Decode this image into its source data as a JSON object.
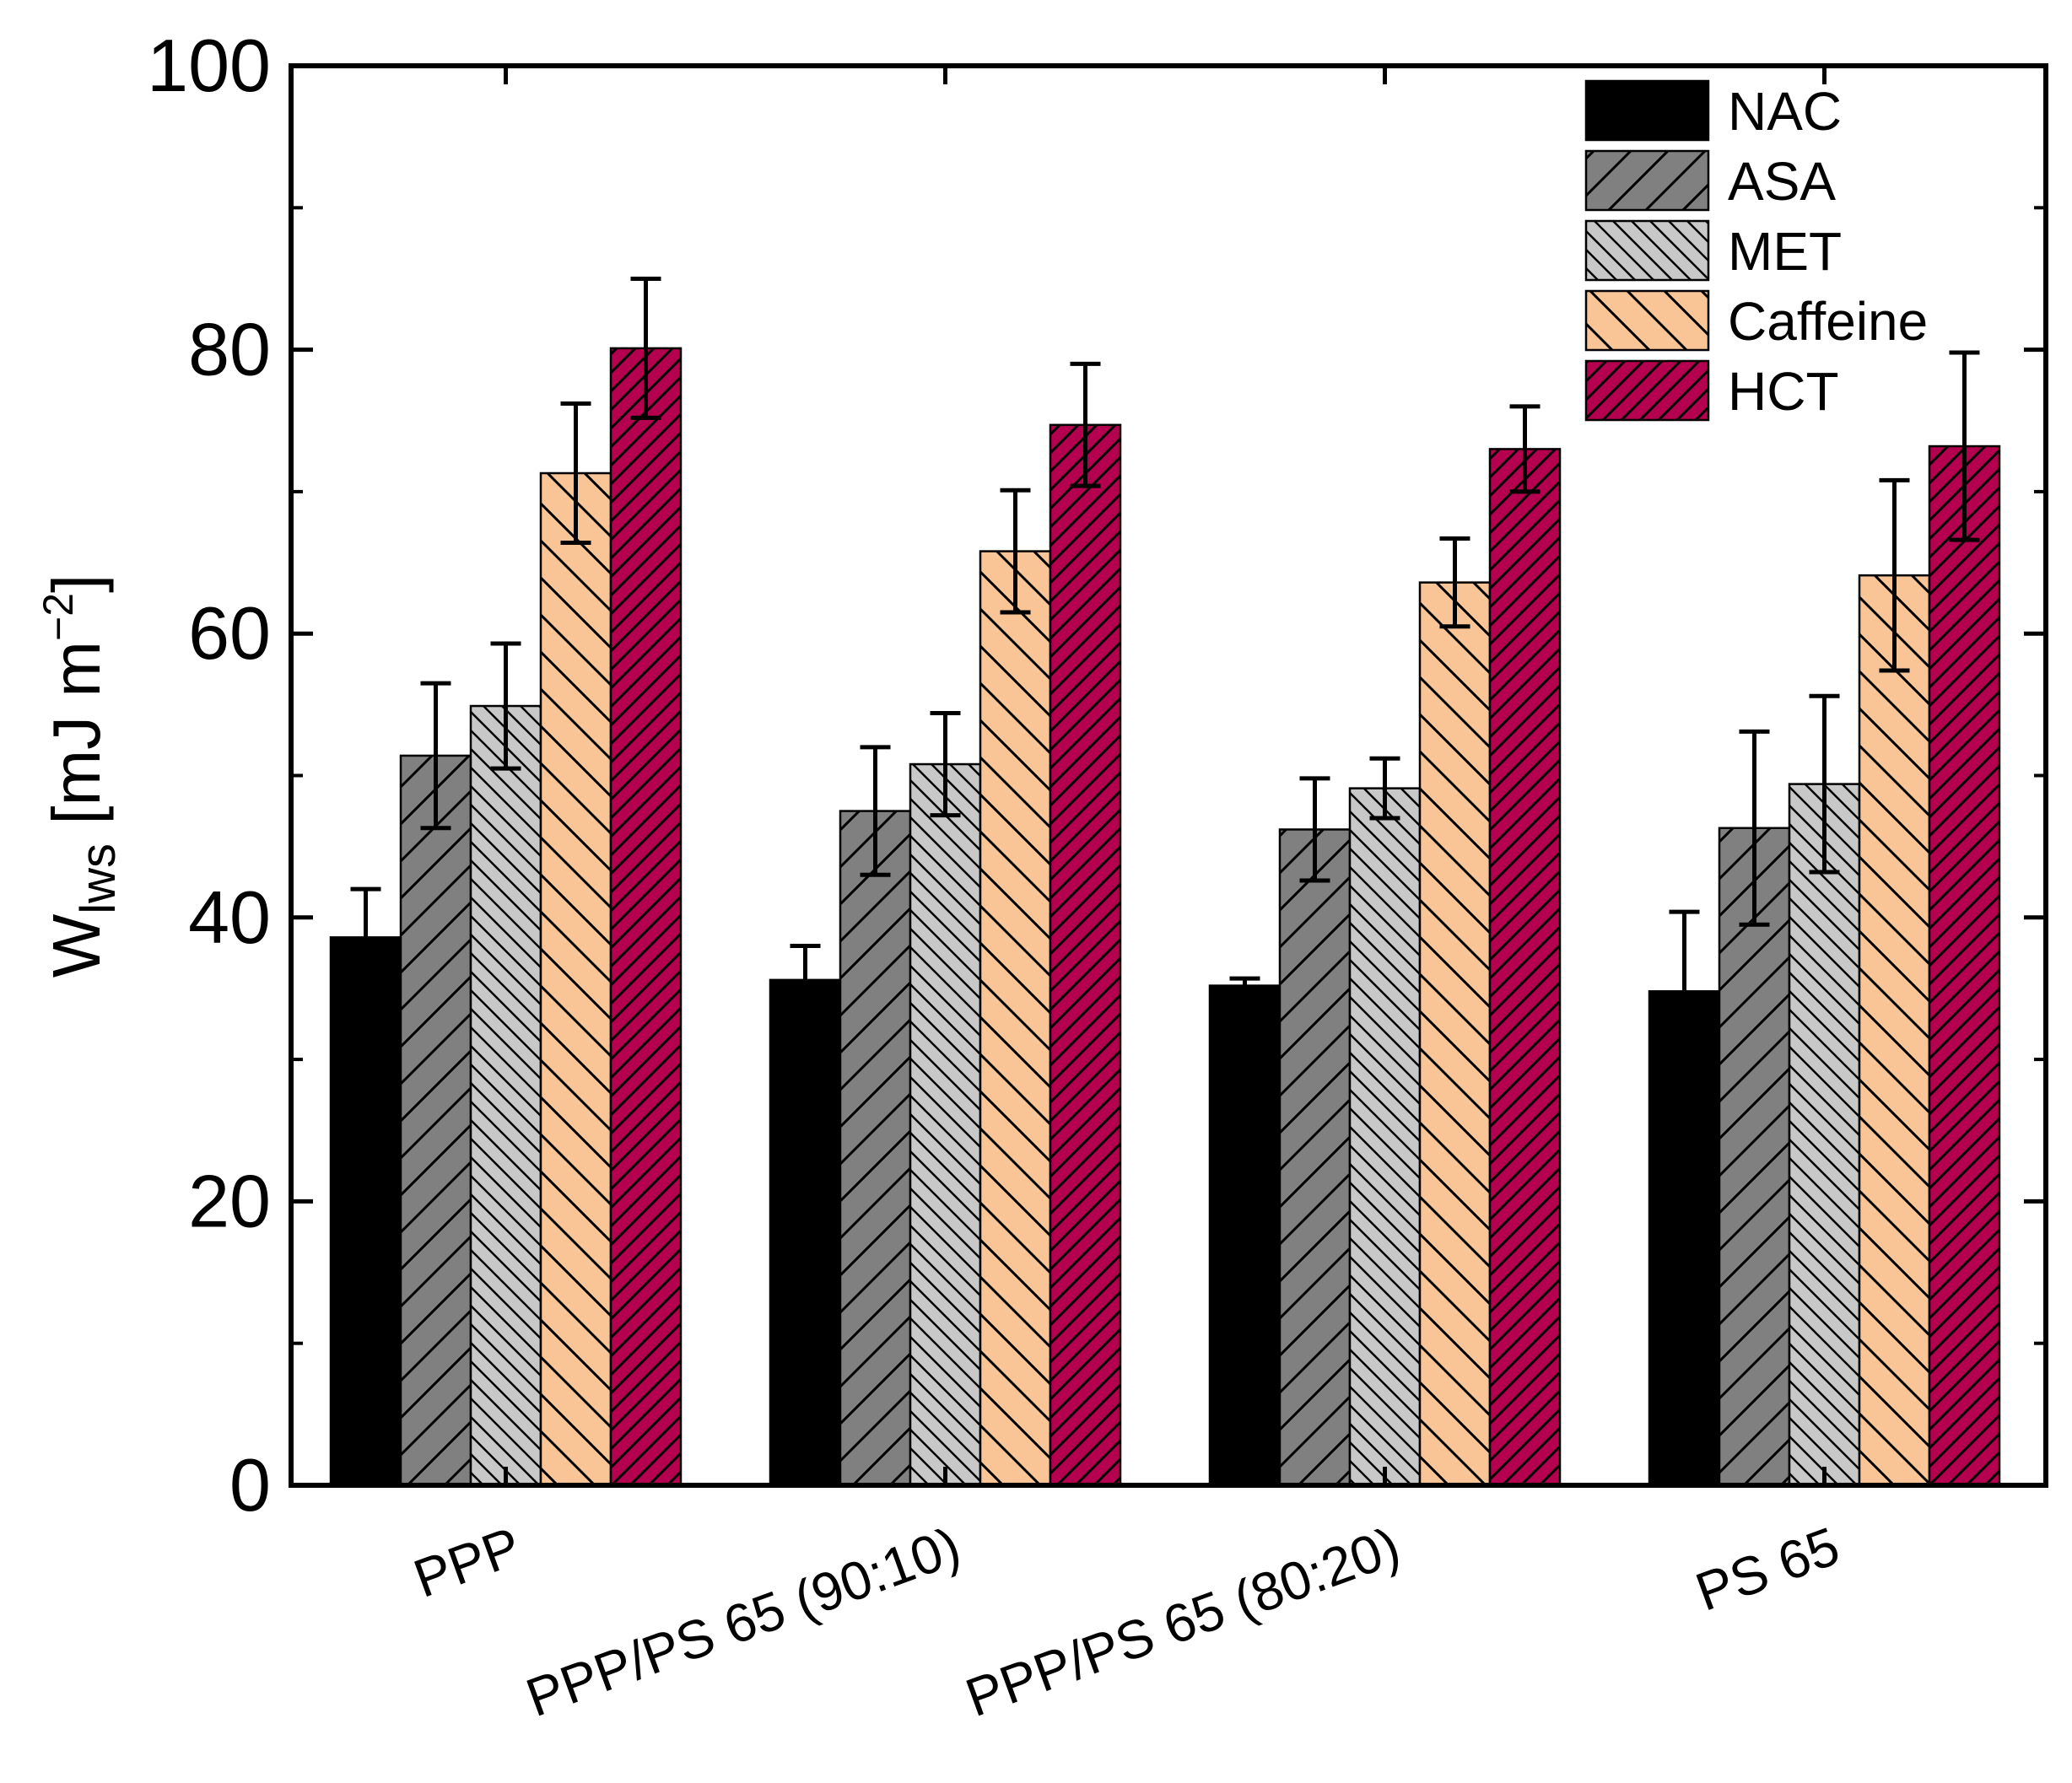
{
  "chart_data": {
    "type": "bar",
    "categories": [
      "PPP",
      "PPP/PS 65 (90:10)",
      "PPP/PS 65 (80:20)",
      "PS 65"
    ],
    "series": [
      {
        "name": "NAC",
        "values": [
          38.6,
          35.6,
          35.2,
          34.8
        ],
        "errors": [
          3.4,
          2.4,
          0.5,
          5.6
        ],
        "color": "#000000",
        "pattern": "none"
      },
      {
        "name": "ASA",
        "values": [
          51.4,
          47.5,
          46.2,
          46.3
        ],
        "errors": [
          5.1,
          4.5,
          3.6,
          6.8
        ],
        "color": "#808080",
        "pattern": "diag-up-wide"
      },
      {
        "name": "MET",
        "values": [
          54.9,
          50.8,
          49.1,
          49.4
        ],
        "errors": [
          4.4,
          3.6,
          2.1,
          6.2
        ],
        "color": "#c8c8c8",
        "pattern": "diag-down-narrow"
      },
      {
        "name": "Caffeine",
        "values": [
          71.3,
          65.8,
          63.6,
          64.1
        ],
        "errors": [
          4.9,
          4.3,
          3.1,
          6.7
        ],
        "color": "#f9c596",
        "pattern": "diag-down-wide"
      },
      {
        "name": "HCT",
        "values": [
          80.1,
          74.7,
          73.0,
          73.2
        ],
        "errors": [
          4.9,
          4.3,
          3.0,
          6.6
        ],
        "color": "#b4004e",
        "pattern": "diag-up-narrow"
      }
    ],
    "ylabel": {
      "main": "W",
      "sub": "lws",
      "unit_open": " [mJ m",
      "unit_sup": "−2",
      "unit_close": "]"
    },
    "ylim": [
      0,
      100
    ],
    "yticks": [
      "0",
      "20",
      "40",
      "60",
      "80",
      "100"
    ],
    "ytick_values": [
      0,
      20,
      40,
      60,
      80,
      100
    ],
    "grid": false,
    "legend_position": "top-right"
  }
}
